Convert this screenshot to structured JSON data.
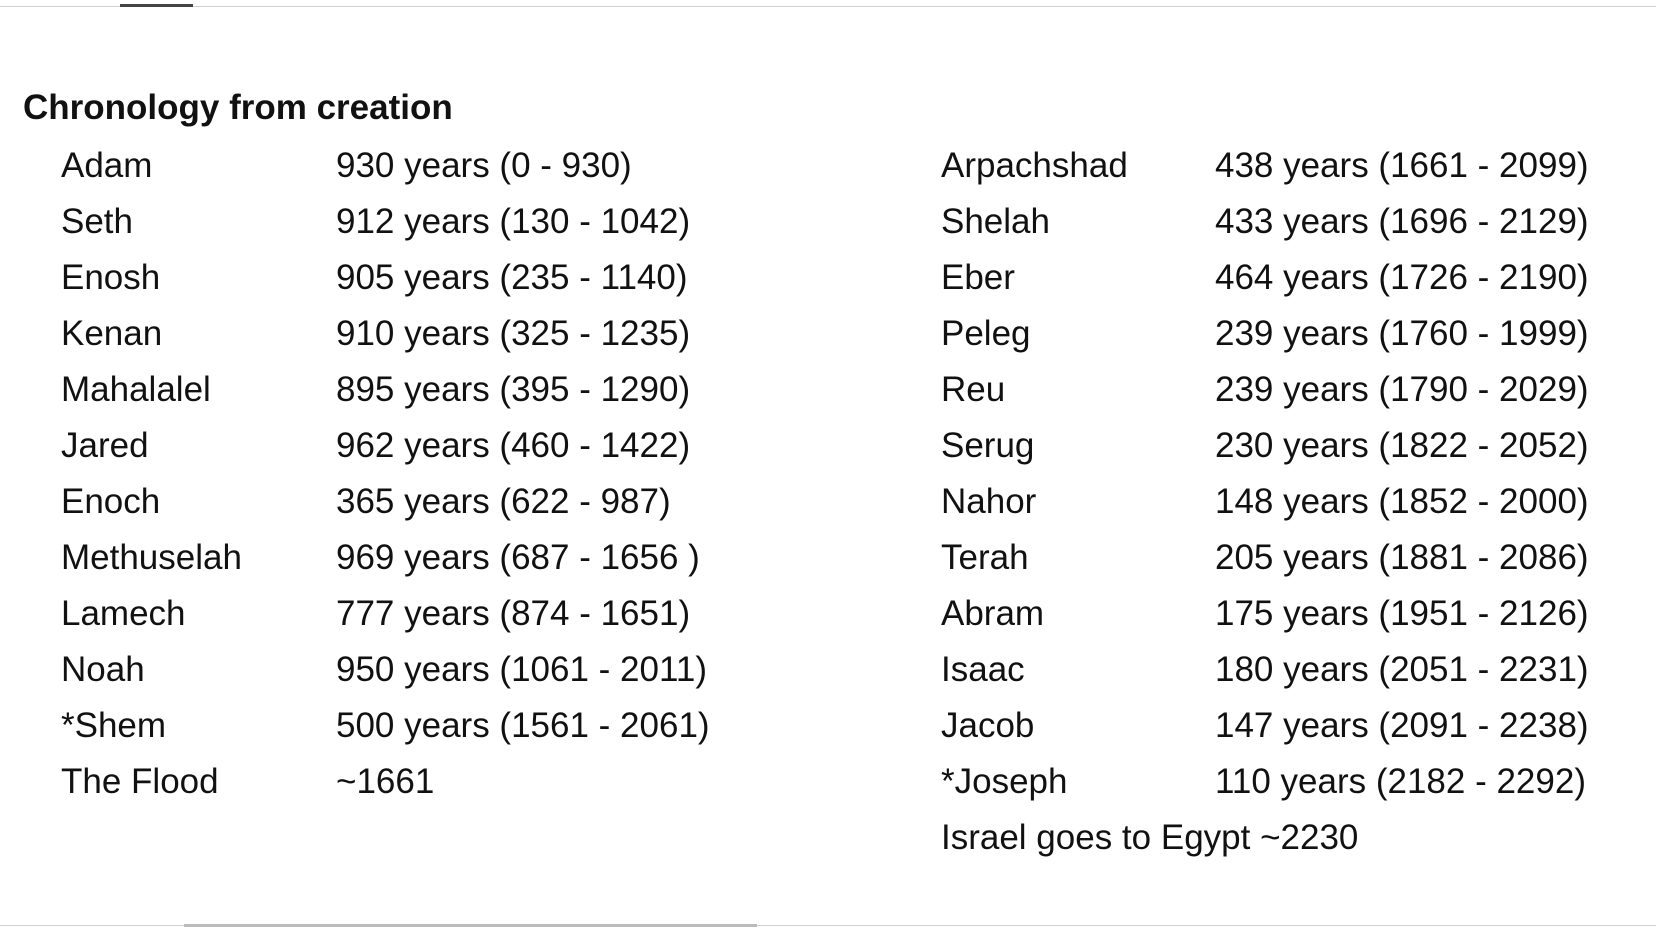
{
  "document": {
    "title": "Chronology from creation",
    "left": [
      [
        "Adam",
        "930 years (0 - 930)"
      ],
      [
        "Seth",
        "912 years (130 - 1042)"
      ],
      [
        "Enosh",
        "905 years (235 - 1140)"
      ],
      [
        "Kenan",
        "910 years (325 - 1235)"
      ],
      [
        "Mahalalel",
        "895 years (395 - 1290)"
      ],
      [
        "Jared",
        "962 years (460 - 1422)"
      ],
      [
        "Enoch",
        "365 years (622 - 987)"
      ],
      [
        "Methuselah",
        "969 years (687 - 1656 )"
      ],
      [
        "Lamech",
        "777 years (874 - 1651)"
      ],
      [
        "Noah",
        "950 years (1061 - 2011)"
      ],
      [
        "*Shem",
        "500 years (1561 - 2061)"
      ],
      [
        "The Flood",
        "~1661"
      ]
    ],
    "right": [
      [
        "Arpachshad",
        "438 years (1661 - 2099)"
      ],
      [
        "Shelah",
        "433 years (1696 - 2129)"
      ],
      [
        "Eber",
        "464 years (1726 - 2190)"
      ],
      [
        "Peleg",
        "239 years (1760 - 1999)"
      ],
      [
        "Reu",
        "239 years (1790 - 2029)"
      ],
      [
        "Serug",
        "230 years (1822 - 2052)"
      ],
      [
        "Nahor",
        "148 years (1852 - 2000)"
      ],
      [
        "Terah",
        "205 years (1881 - 2086)"
      ],
      [
        "Abram",
        "175 years (1951 - 2126)"
      ],
      [
        "Isaac",
        "180 years (2051 - 2231)"
      ],
      [
        "Jacob",
        "147 years (2091 - 2238)"
      ],
      [
        "*Joseph",
        "110 years (2182 - 2292)"
      ]
    ],
    "note": "Israel goes to Egypt ~2230"
  }
}
